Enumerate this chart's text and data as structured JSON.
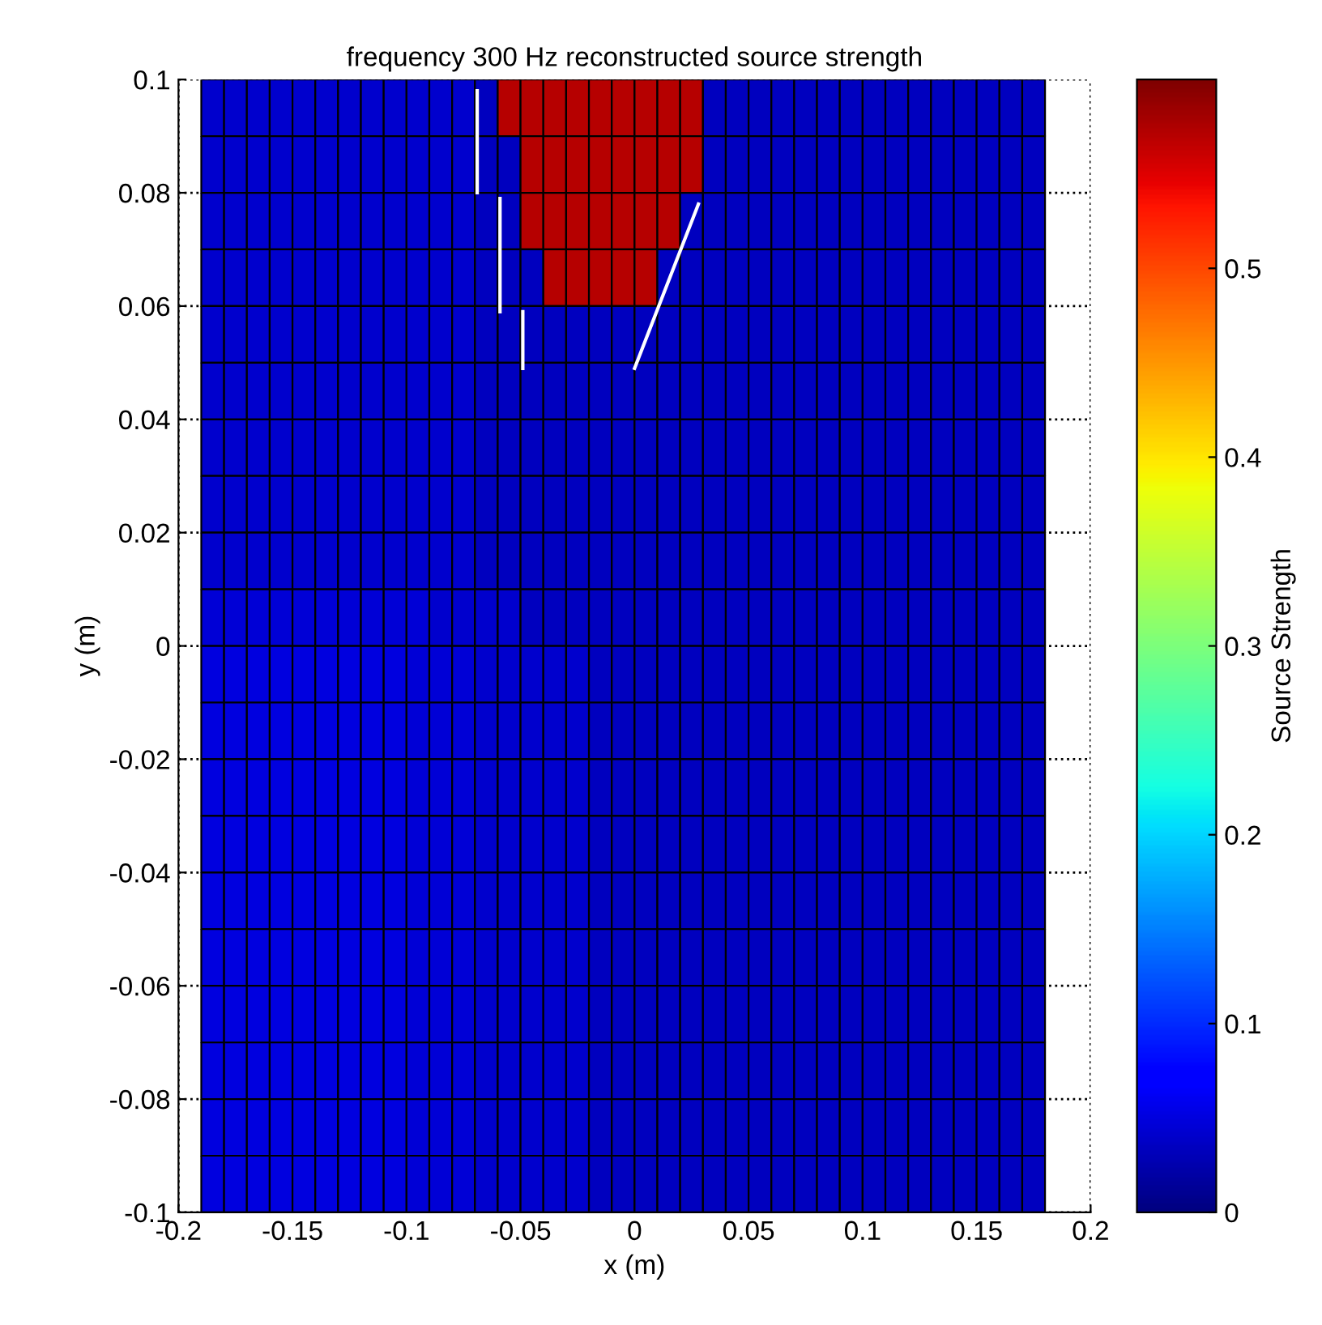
{
  "chart_data": {
    "type": "heatmap",
    "title": "frequency 300 Hz reconstructed source strength",
    "xlabel": "x (m)",
    "ylabel": "y (m)",
    "clabel": "Source Strength",
    "cells": [
      [
        null,
        0.04,
        0.04,
        0.04,
        0.04,
        0.04,
        0.04,
        0.04,
        0.04,
        0.04,
        0.04,
        0.04,
        0.04,
        0.035,
        0.57,
        0.57,
        0.57,
        0.57,
        0.57,
        0.57,
        0.57,
        0.57,
        0.57,
        0.035,
        0.035,
        0.035,
        0.035,
        0.035,
        0.035,
        0.035,
        0.035,
        0.035,
        0.035,
        0.035,
        0.035,
        0.035,
        0.035,
        0.035,
        null,
        null
      ],
      [
        null,
        0.04,
        0.04,
        0.04,
        0.04,
        0.04,
        0.04,
        0.04,
        0.04,
        0.04,
        0.04,
        0.04,
        0.04,
        0.035,
        0.035,
        0.57,
        0.57,
        0.57,
        0.57,
        0.57,
        0.57,
        0.57,
        0.57,
        0.035,
        0.035,
        0.035,
        0.035,
        0.035,
        0.035,
        0.035,
        0.035,
        0.035,
        0.035,
        0.035,
        0.035,
        0.035,
        0.035,
        0.035,
        null,
        null
      ],
      [
        null,
        0.04,
        0.04,
        0.04,
        0.04,
        0.04,
        0.04,
        0.04,
        0.04,
        0.04,
        0.04,
        0.04,
        0.04,
        0.035,
        0.035,
        0.57,
        0.57,
        0.57,
        0.57,
        0.57,
        0.57,
        0.57,
        0.035,
        0.035,
        0.035,
        0.035,
        0.035,
        0.035,
        0.035,
        0.035,
        0.035,
        0.035,
        0.035,
        0.035,
        0.035,
        0.035,
        0.035,
        0.035,
        null,
        null
      ],
      [
        null,
        0.04,
        0.04,
        0.04,
        0.04,
        0.04,
        0.04,
        0.04,
        0.04,
        0.04,
        0.04,
        0.04,
        0.04,
        0.035,
        0.035,
        0.035,
        0.57,
        0.57,
        0.57,
        0.57,
        0.57,
        0.035,
        0.035,
        0.035,
        0.035,
        0.035,
        0.035,
        0.035,
        0.035,
        0.035,
        0.035,
        0.035,
        0.035,
        0.035,
        0.035,
        0.035,
        0.035,
        0.035,
        null,
        null
      ],
      [
        null,
        0.04,
        0.04,
        0.04,
        0.04,
        0.04,
        0.04,
        0.04,
        0.04,
        0.04,
        0.04,
        0.04,
        0.04,
        0.035,
        0.035,
        0.035,
        0.035,
        0.035,
        0.035,
        0.035,
        0.035,
        0.035,
        0.035,
        0.035,
        0.035,
        0.035,
        0.035,
        0.035,
        0.035,
        0.035,
        0.035,
        0.035,
        0.035,
        0.035,
        0.035,
        0.035,
        0.035,
        0.035,
        null,
        null
      ],
      [
        null,
        0.04,
        0.04,
        0.04,
        0.04,
        0.04,
        0.04,
        0.04,
        0.04,
        0.04,
        0.04,
        0.04,
        0.04,
        0.035,
        0.035,
        0.035,
        0.035,
        0.035,
        0.035,
        0.035,
        0.035,
        0.035,
        0.035,
        0.035,
        0.035,
        0.035,
        0.035,
        0.035,
        0.035,
        0.035,
        0.035,
        0.035,
        0.035,
        0.035,
        0.035,
        0.035,
        0.035,
        0.035,
        null,
        null
      ],
      [
        null,
        0.04,
        0.04,
        0.04,
        0.04,
        0.04,
        0.04,
        0.04,
        0.04,
        0.04,
        0.04,
        0.04,
        0.04,
        0.035,
        0.035,
        0.035,
        0.035,
        0.035,
        0.035,
        0.035,
        0.035,
        0.035,
        0.035,
        0.035,
        0.035,
        0.035,
        0.035,
        0.035,
        0.035,
        0.035,
        0.035,
        0.035,
        0.035,
        0.035,
        0.035,
        0.035,
        0.035,
        0.035,
        null,
        null
      ],
      [
        null,
        0.04,
        0.04,
        0.04,
        0.04,
        0.04,
        0.04,
        0.04,
        0.04,
        0.04,
        0.04,
        0.04,
        0.04,
        0.035,
        0.035,
        0.035,
        0.035,
        0.035,
        0.035,
        0.035,
        0.035,
        0.035,
        0.035,
        0.035,
        0.035,
        0.035,
        0.035,
        0.035,
        0.035,
        0.035,
        0.035,
        0.035,
        0.035,
        0.035,
        0.035,
        0.035,
        0.035,
        0.035,
        null,
        null
      ],
      [
        null,
        0.04,
        0.04,
        0.04,
        0.04,
        0.04,
        0.04,
        0.04,
        0.04,
        0.04,
        0.04,
        0.04,
        0.04,
        0.035,
        0.035,
        0.035,
        0.035,
        0.035,
        0.035,
        0.035,
        0.035,
        0.035,
        0.035,
        0.035,
        0.035,
        0.035,
        0.035,
        0.035,
        0.035,
        0.035,
        0.035,
        0.035,
        0.035,
        0.035,
        0.035,
        0.035,
        0.035,
        0.035,
        null,
        null
      ],
      [
        null,
        0.045,
        0.045,
        0.045,
        0.045,
        0.045,
        0.045,
        0.045,
        0.045,
        0.045,
        0.045,
        0.04,
        0.04,
        0.04,
        0.04,
        0.035,
        0.035,
        0.035,
        0.035,
        0.035,
        0.035,
        0.035,
        0.035,
        0.035,
        0.035,
        0.035,
        0.035,
        0.035,
        0.035,
        0.035,
        0.035,
        0.035,
        0.035,
        0.035,
        0.035,
        0.035,
        0.035,
        0.035,
        null,
        null
      ],
      [
        null,
        0.05,
        0.05,
        0.05,
        0.05,
        0.05,
        0.05,
        0.05,
        0.05,
        0.05,
        0.045,
        0.045,
        0.045,
        0.04,
        0.04,
        0.04,
        0.04,
        0.04,
        0.035,
        0.035,
        0.035,
        0.035,
        0.035,
        0.035,
        0.035,
        0.035,
        0.035,
        0.035,
        0.035,
        0.035,
        0.035,
        0.035,
        0.035,
        0.035,
        0.035,
        0.035,
        0.035,
        0.035,
        null,
        null
      ],
      [
        null,
        0.05,
        0.05,
        0.05,
        0.05,
        0.05,
        0.05,
        0.05,
        0.05,
        0.05,
        0.045,
        0.045,
        0.045,
        0.04,
        0.04,
        0.04,
        0.04,
        0.04,
        0.035,
        0.035,
        0.035,
        0.035,
        0.035,
        0.035,
        0.035,
        0.035,
        0.035,
        0.035,
        0.035,
        0.035,
        0.035,
        0.035,
        0.035,
        0.035,
        0.035,
        0.035,
        0.035,
        0.035,
        null,
        null
      ],
      [
        null,
        0.05,
        0.05,
        0.05,
        0.05,
        0.05,
        0.05,
        0.05,
        0.05,
        0.05,
        0.045,
        0.045,
        0.045,
        0.04,
        0.04,
        0.04,
        0.04,
        0.04,
        0.035,
        0.035,
        0.035,
        0.035,
        0.035,
        0.035,
        0.035,
        0.035,
        0.035,
        0.035,
        0.035,
        0.035,
        0.035,
        0.035,
        0.035,
        0.035,
        0.035,
        0.035,
        0.035,
        0.035,
        null,
        null
      ],
      [
        null,
        0.05,
        0.05,
        0.05,
        0.05,
        0.05,
        0.05,
        0.05,
        0.05,
        0.05,
        0.045,
        0.045,
        0.045,
        0.04,
        0.04,
        0.04,
        0.04,
        0.04,
        0.035,
        0.035,
        0.035,
        0.035,
        0.035,
        0.035,
        0.035,
        0.035,
        0.035,
        0.035,
        0.035,
        0.035,
        0.035,
        0.035,
        0.035,
        0.035,
        0.035,
        0.035,
        0.035,
        0.035,
        null,
        null
      ],
      [
        null,
        0.05,
        0.05,
        0.05,
        0.05,
        0.05,
        0.05,
        0.05,
        0.05,
        0.05,
        0.045,
        0.045,
        0.045,
        0.04,
        0.04,
        0.04,
        0.04,
        0.04,
        0.035,
        0.035,
        0.035,
        0.035,
        0.035,
        0.035,
        0.035,
        0.035,
        0.035,
        0.035,
        0.035,
        0.035,
        0.035,
        0.035,
        0.035,
        0.035,
        0.035,
        0.035,
        0.035,
        0.035,
        null,
        null
      ],
      [
        null,
        0.05,
        0.05,
        0.05,
        0.05,
        0.05,
        0.05,
        0.05,
        0.05,
        0.05,
        0.045,
        0.045,
        0.045,
        0.04,
        0.04,
        0.04,
        0.04,
        0.04,
        0.035,
        0.035,
        0.035,
        0.035,
        0.035,
        0.035,
        0.035,
        0.035,
        0.035,
        0.035,
        0.035,
        0.035,
        0.035,
        0.035,
        0.035,
        0.035,
        0.035,
        0.035,
        0.035,
        0.035,
        null,
        null
      ],
      [
        null,
        0.05,
        0.05,
        0.05,
        0.05,
        0.05,
        0.05,
        0.05,
        0.05,
        0.05,
        0.045,
        0.045,
        0.045,
        0.04,
        0.04,
        0.04,
        0.04,
        0.04,
        0.035,
        0.035,
        0.035,
        0.035,
        0.035,
        0.035,
        0.035,
        0.035,
        0.035,
        0.035,
        0.035,
        0.035,
        0.035,
        0.035,
        0.035,
        0.035,
        0.035,
        0.035,
        0.035,
        0.035,
        null,
        null
      ],
      [
        null,
        0.05,
        0.05,
        0.05,
        0.05,
        0.05,
        0.05,
        0.05,
        0.05,
        0.05,
        0.045,
        0.045,
        0.045,
        0.04,
        0.04,
        0.04,
        0.04,
        0.04,
        0.035,
        0.035,
        0.035,
        0.035,
        0.035,
        0.035,
        0.035,
        0.035,
        0.035,
        0.035,
        0.035,
        0.035,
        0.035,
        0.035,
        0.035,
        0.035,
        0.035,
        0.035,
        0.035,
        0.035,
        null,
        null
      ],
      [
        null,
        0.05,
        0.05,
        0.05,
        0.05,
        0.05,
        0.05,
        0.05,
        0.05,
        0.05,
        0.045,
        0.045,
        0.045,
        0.04,
        0.04,
        0.04,
        0.04,
        0.04,
        0.035,
        0.035,
        0.035,
        0.035,
        0.035,
        0.035,
        0.035,
        0.035,
        0.035,
        0.035,
        0.035,
        0.035,
        0.035,
        0.035,
        0.035,
        0.035,
        0.035,
        0.035,
        0.035,
        0.035,
        null,
        null
      ],
      [
        null,
        0.05,
        0.05,
        0.05,
        0.05,
        0.05,
        0.05,
        0.05,
        0.05,
        0.05,
        0.045,
        0.045,
        0.045,
        0.04,
        0.04,
        0.04,
        0.04,
        0.04,
        0.035,
        0.035,
        0.035,
        0.035,
        0.035,
        0.035,
        0.035,
        0.035,
        0.035,
        0.035,
        0.035,
        0.035,
        0.035,
        0.035,
        0.035,
        0.035,
        0.035,
        0.035,
        0.035,
        0.035,
        null,
        null
      ]
    ],
    "series": [
      {
        "type": "line",
        "color": "#ffffff",
        "x": [
          -0.069,
          -0.069,
          null,
          -0.059,
          -0.059,
          null,
          -0.049,
          -0.049,
          null,
          0.028,
          0.0
        ],
        "values": [
          0.098,
          0.08,
          null,
          0.079,
          0.059,
          null,
          0.059,
          0.049,
          null,
          0.078,
          0.049
        ]
      }
    ],
    "xlim": [
      -0.2,
      0.2
    ],
    "xticks": [
      -0.2,
      -0.15,
      -0.1,
      -0.05,
      0,
      0.05,
      0.1,
      0.15,
      0.2
    ],
    "ylim": [
      -0.1,
      0.1
    ],
    "yticks": [
      -0.1,
      -0.08,
      -0.06,
      -0.04,
      -0.02,
      0,
      0.02,
      0.04,
      0.06,
      0.08,
      0.1
    ],
    "clim": [
      0,
      0.6
    ],
    "cticks": [
      0,
      0.1,
      0.2,
      0.3,
      0.4,
      0.5
    ],
    "grid": true
  }
}
